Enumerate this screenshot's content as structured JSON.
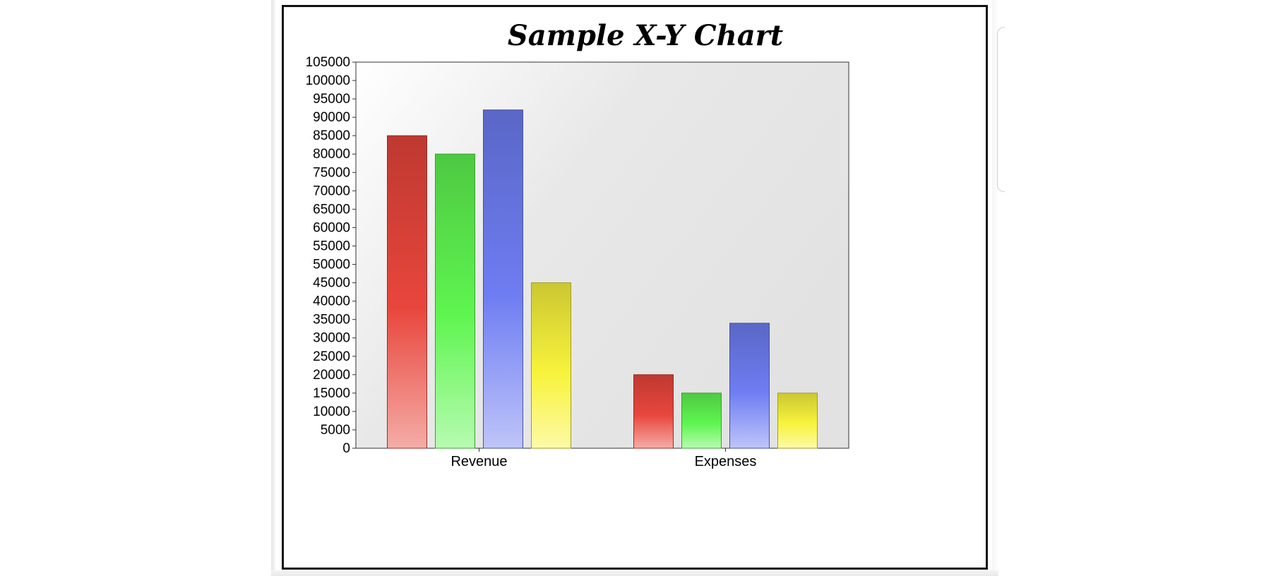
{
  "colors": {
    "red": "#e8463c",
    "green": "#5ff550",
    "blue": "#6e7df2",
    "yellow": "#f8f33c"
  },
  "chart_data": {
    "type": "bar",
    "title": "Sample X-Y Chart",
    "xlabel": "",
    "ylabel": "",
    "categories": [
      "Revenue",
      "Expenses"
    ],
    "series": [
      {
        "color": "red",
        "values": [
          85000,
          20000
        ]
      },
      {
        "color": "green",
        "values": [
          80000,
          15000
        ]
      },
      {
        "color": "blue",
        "values": [
          92000,
          34000
        ]
      },
      {
        "color": "yellow",
        "values": [
          45000,
          15000
        ]
      }
    ],
    "ylim": [
      0,
      105000
    ],
    "ytick_step": 5000,
    "legend": "none",
    "grid": false
  }
}
